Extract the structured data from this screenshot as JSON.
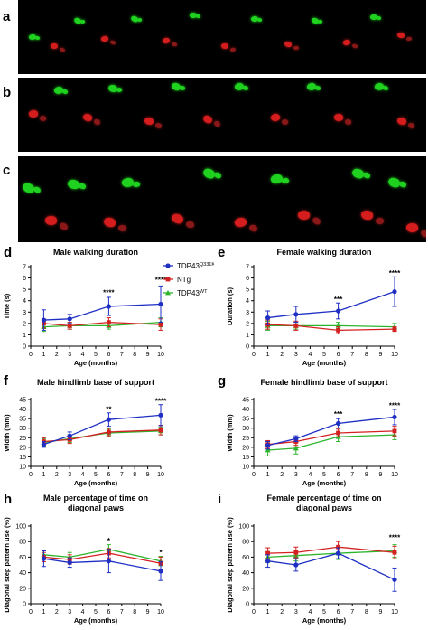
{
  "figure": {
    "photo_panels": [
      "a",
      "b",
      "c"
    ],
    "paw_colors": {
      "front": "#1fd21f",
      "hind": "#d61d1d",
      "hind_faded": "#8a1818"
    }
  },
  "legend": {
    "entries": [
      {
        "base": "TDP43",
        "sup": "Q331K",
        "color": "#1f2fc4",
        "marker": "circle"
      },
      {
        "base": "NTg",
        "sup": "",
        "color": "#d42020",
        "marker": "square"
      },
      {
        "base": "TDP43",
        "sup": "WT",
        "color": "#2cb52c",
        "marker": "triangle"
      }
    ]
  },
  "chart_data": [
    {
      "panel": "d",
      "type": "line",
      "title": "Male walking duration",
      "xlabel": "Age (months)",
      "ylabel": "Time (s)",
      "x": [
        1,
        3,
        6,
        10
      ],
      "xlim": [
        0,
        10
      ],
      "ylim": [
        0,
        7
      ],
      "xticks": [
        0,
        1,
        2,
        3,
        4,
        5,
        6,
        7,
        8,
        9,
        10
      ],
      "yticks": [
        0,
        1,
        2,
        3,
        4,
        5,
        6,
        7
      ],
      "series": [
        {
          "values": [
            2.3,
            2.4,
            3.5,
            3.7
          ],
          "err": [
            0.9,
            0.4,
            0.8,
            1.6
          ],
          "color": "#1f2fc4",
          "marker": "circle"
        },
        {
          "values": [
            2.0,
            1.8,
            2.1,
            1.9
          ],
          "err": [
            0.4,
            0.3,
            0.4,
            0.5
          ],
          "color": "#d42020",
          "marker": "square"
        },
        {
          "values": [
            1.7,
            1.8,
            1.8,
            2.1
          ],
          "err": [
            0.4,
            0.3,
            0.3,
            0.4
          ],
          "color": "#2cb52c",
          "marker": "triangle"
        }
      ],
      "annotations": [
        {
          "x": 6,
          "y": 4.5,
          "text": "****"
        },
        {
          "x": 10,
          "y": 5.6,
          "text": "****"
        }
      ]
    },
    {
      "panel": "e",
      "type": "line",
      "title": "Female walking duration",
      "xlabel": "Age (months)",
      "ylabel": "Duration (s)",
      "x": [
        1,
        3,
        6,
        10
      ],
      "xlim": [
        0,
        10
      ],
      "ylim": [
        0,
        7
      ],
      "xticks": [
        0,
        1,
        2,
        3,
        4,
        5,
        6,
        7,
        8,
        9,
        10
      ],
      "yticks": [
        0,
        1,
        2,
        3,
        4,
        5,
        6,
        7
      ],
      "series": [
        {
          "values": [
            2.5,
            2.8,
            3.1,
            4.8
          ],
          "err": [
            0.6,
            0.7,
            0.7,
            1.3
          ],
          "color": "#1f2fc4",
          "marker": "circle"
        },
        {
          "values": [
            1.9,
            1.8,
            1.4,
            1.5
          ],
          "err": [
            0.4,
            0.4,
            0.3,
            0.2
          ],
          "color": "#d42020",
          "marker": "square"
        },
        {
          "values": [
            1.8,
            1.8,
            1.8,
            1.7
          ],
          "err": [
            0.4,
            0.3,
            0.3,
            0.3
          ],
          "color": "#2cb52c",
          "marker": "triangle"
        }
      ],
      "annotations": [
        {
          "x": 6,
          "y": 3.9,
          "text": "***"
        },
        {
          "x": 10,
          "y": 6.2,
          "text": "****"
        }
      ]
    },
    {
      "panel": "f",
      "type": "line",
      "title": "Male hindlimb base of support",
      "xlabel": "Age (months)",
      "ylabel": "Width (mm)",
      "x": [
        1,
        3,
        6,
        10
      ],
      "xlim": [
        0,
        10
      ],
      "ylim": [
        10,
        45
      ],
      "xticks": [
        0,
        1,
        2,
        3,
        4,
        5,
        6,
        7,
        8,
        9,
        10
      ],
      "yticks": [
        10,
        15,
        20,
        25,
        30,
        35,
        40,
        45
      ],
      "series": [
        {
          "values": [
            21.5,
            26.0,
            34.5,
            36.8
          ],
          "err": [
            1.5,
            2.0,
            3.5,
            5.5
          ],
          "color": "#1f2fc4",
          "marker": "circle"
        },
        {
          "values": [
            23.0,
            24.0,
            28.0,
            29.0
          ],
          "err": [
            2.0,
            2.0,
            2.0,
            2.5
          ],
          "color": "#d42020",
          "marker": "square"
        },
        {
          "values": [
            22.5,
            24.5,
            27.5,
            28.5
          ],
          "err": [
            2.0,
            2.0,
            2.0,
            2.0
          ],
          "color": "#2cb52c",
          "marker": "triangle"
        }
      ],
      "annotations": [
        {
          "x": 6,
          "y": 38.5,
          "text": "**"
        },
        {
          "x": 10,
          "y": 42.8,
          "text": "****"
        }
      ]
    },
    {
      "panel": "g",
      "type": "line",
      "title": "Female hindlimb base of support",
      "xlabel": "Age (months)",
      "ylabel": "Width (mm)",
      "x": [
        1,
        3,
        6,
        10
      ],
      "xlim": [
        0,
        10
      ],
      "ylim": [
        10,
        45
      ],
      "xticks": [
        0,
        1,
        2,
        3,
        4,
        5,
        6,
        7,
        8,
        9,
        10
      ],
      "yticks": [
        10,
        15,
        20,
        25,
        30,
        35,
        40,
        45
      ],
      "series": [
        {
          "values": [
            21.0,
            24.5,
            32.5,
            35.8
          ],
          "err": [
            2.0,
            1.5,
            2.5,
            4.0
          ],
          "color": "#1f2fc4",
          "marker": "circle"
        },
        {
          "values": [
            21.5,
            23.0,
            27.5,
            28.5
          ],
          "err": [
            2.0,
            2.0,
            2.0,
            2.5
          ],
          "color": "#d42020",
          "marker": "square"
        },
        {
          "values": [
            18.5,
            19.5,
            25.5,
            26.5
          ],
          "err": [
            3.0,
            3.0,
            2.5,
            2.5
          ],
          "color": "#2cb52c",
          "marker": "triangle"
        }
      ],
      "annotations": [
        {
          "x": 6,
          "y": 36.0,
          "text": "***"
        },
        {
          "x": 10,
          "y": 40.5,
          "text": "****"
        }
      ]
    },
    {
      "panel": "h",
      "type": "line",
      "title": "Male percentage of time on\ndiagonal paws",
      "xlabel": "Age (months)",
      "ylabel": "Diagonal step pattern use (%)",
      "x": [
        1,
        3,
        6,
        10
      ],
      "xlim": [
        0,
        10
      ],
      "ylim": [
        0,
        100
      ],
      "xticks": [
        0,
        1,
        2,
        3,
        4,
        5,
        6,
        7,
        8,
        9,
        10
      ],
      "yticks": [
        0,
        20,
        40,
        60,
        80,
        100
      ],
      "series": [
        {
          "values": [
            58,
            53,
            55,
            42
          ],
          "err": [
            10,
            6,
            15,
            12
          ],
          "color": "#1f2fc4",
          "marker": "circle"
        },
        {
          "values": [
            60,
            57,
            65,
            52
          ],
          "err": [
            6,
            6,
            6,
            8
          ],
          "color": "#d42020",
          "marker": "square"
        },
        {
          "values": [
            63,
            60,
            70,
            55
          ],
          "err": [
            6,
            6,
            6,
            6
          ],
          "color": "#2cb52c",
          "marker": "triangle"
        }
      ],
      "annotations": [
        {
          "x": 6,
          "y": 78,
          "text": "*"
        },
        {
          "x": 10,
          "y": 63,
          "text": "*"
        }
      ]
    },
    {
      "panel": "i",
      "type": "line",
      "title": "Female percentage of time on\ndiagonal paws",
      "xlabel": "Age (months)",
      "ylabel": "Diagonal step pattern use (%)",
      "x": [
        1,
        3,
        6,
        10
      ],
      "xlim": [
        0,
        10
      ],
      "ylim": [
        0,
        100
      ],
      "xticks": [
        0,
        1,
        2,
        3,
        4,
        5,
        6,
        7,
        8,
        9,
        10
      ],
      "yticks": [
        0,
        20,
        40,
        60,
        80,
        100
      ],
      "series": [
        {
          "values": [
            55,
            50,
            65,
            31
          ],
          "err": [
            8,
            8,
            7,
            15
          ],
          "color": "#1f2fc4",
          "marker": "circle"
        },
        {
          "values": [
            65,
            66,
            73,
            66
          ],
          "err": [
            7,
            7,
            7,
            8
          ],
          "color": "#d42020",
          "marker": "square"
        },
        {
          "values": [
            60,
            62,
            65,
            68
          ],
          "err": [
            7,
            7,
            8,
            8
          ],
          "color": "#2cb52c",
          "marker": "triangle"
        }
      ],
      "annotations": [
        {
          "x": 10,
          "y": 82,
          "text": "****"
        }
      ]
    }
  ]
}
